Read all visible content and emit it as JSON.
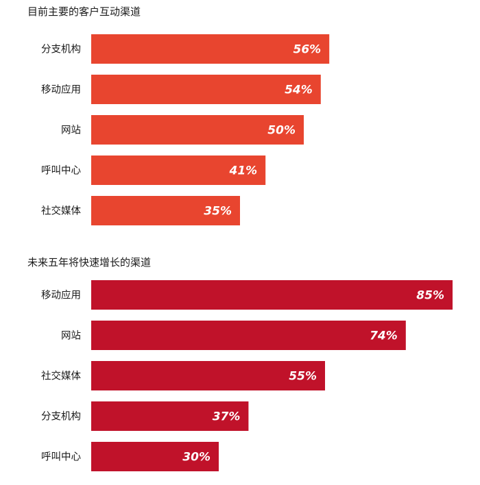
{
  "chart_data": [
    {
      "type": "bar",
      "orientation": "horizontal",
      "title": "目前主要的客户互动渠道",
      "categories": [
        "分支机构",
        "移动应用",
        "网站",
        "呼叫中心",
        "社交媒体"
      ],
      "values": [
        56,
        54,
        50,
        41,
        35
      ],
      "value_labels": [
        "56%",
        "54%",
        "50%",
        "41%",
        "35%"
      ],
      "xlim": [
        0,
        85
      ],
      "grid": false,
      "bar_color": "#e8452f"
    },
    {
      "type": "bar",
      "orientation": "horizontal",
      "title": "未来五年将快速增长的渠道",
      "categories": [
        "移动应用",
        "网站",
        "社交媒体",
        "分支机构",
        "呼叫中心"
      ],
      "values": [
        85,
        74,
        55,
        37,
        30
      ],
      "value_labels": [
        "85%",
        "74%",
        "55%",
        "37%",
        "30%"
      ],
      "xlim": [
        0,
        85
      ],
      "grid": false,
      "bar_color": "#c0122a"
    }
  ]
}
